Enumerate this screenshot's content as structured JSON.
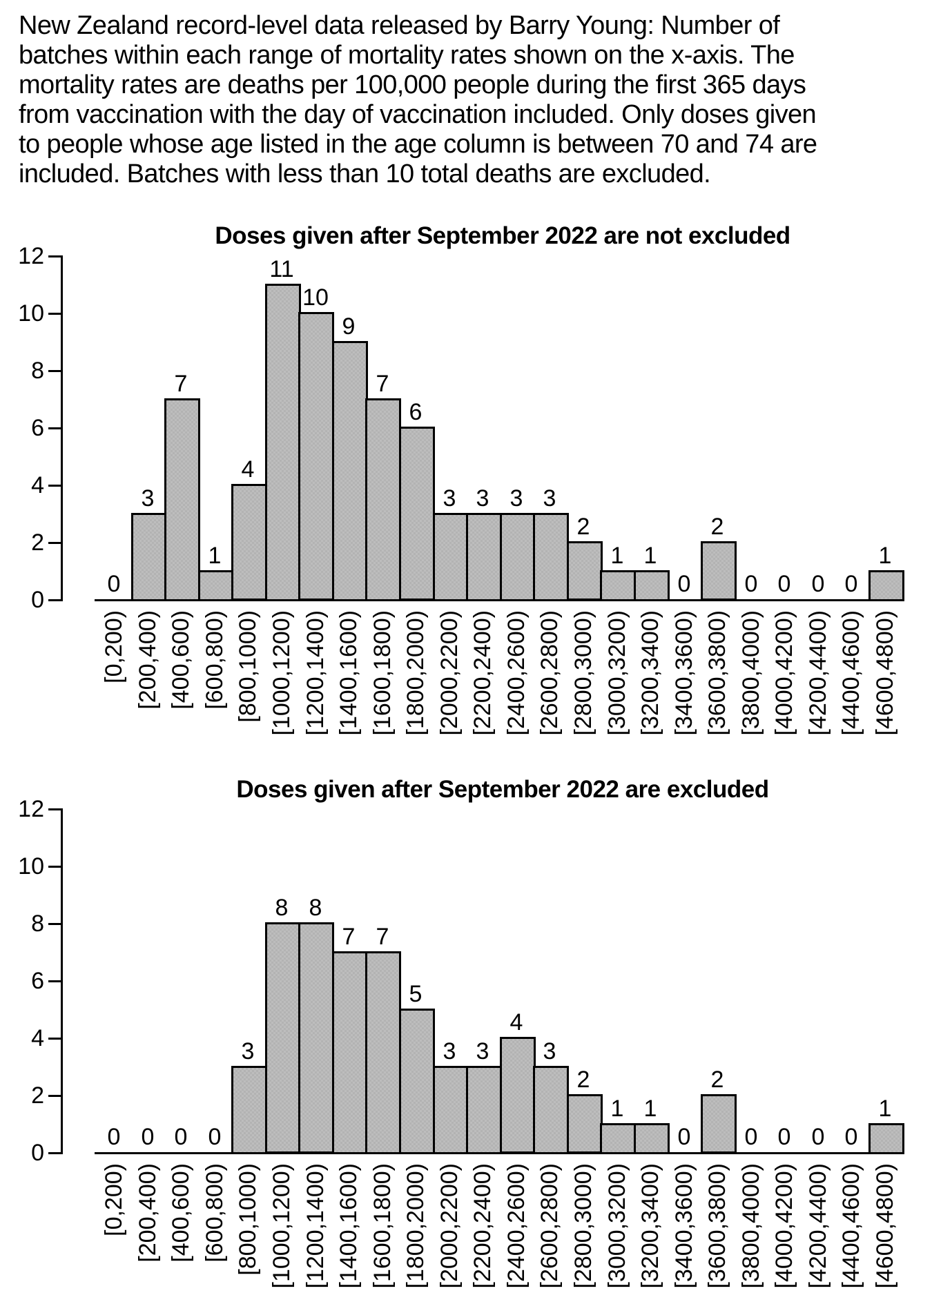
{
  "header": {
    "lines": [
      "New Zealand record-level data released by Barry Young: Number of",
      "batches within each range of mortality rates shown on the x-axis. The",
      "mortality rates are deaths per 100,000 people during the first 365 days",
      "from vaccination with the day of vaccination included. Only doses given",
      "to people whose age listed in the age column is between 70 and 74 are",
      "included. Batches with less than 10 total deaths are excluded."
    ]
  },
  "colors": {
    "background": "#ffffff",
    "bar_fill": "#b9b9b9",
    "bar_border": "#000000",
    "axis": "#000000",
    "text": "#000000"
  },
  "chart_data": [
    {
      "type": "bar",
      "title": "Doses given after September 2022 are not excluded",
      "categories": [
        "[0,200)",
        "[200,400)",
        "[400,600)",
        "[600,800)",
        "[800,1000)",
        "[1000,1200)",
        "[1200,1400)",
        "[1400,1600)",
        "[1600,1800)",
        "[1800,2000)",
        "[2000,2200)",
        "[2200,2400)",
        "[2400,2600)",
        "[2600,2800)",
        "[2800,3000)",
        "[3000,3200)",
        "[3200,3400)",
        "[3400,3600)",
        "[3600,3800)",
        "[3800,4000)",
        "[4000,4200)",
        "[4200,4400)",
        "[4400,4600)",
        "[4600,4800)"
      ],
      "values": [
        0,
        3,
        7,
        1,
        4,
        11,
        10,
        9,
        7,
        6,
        3,
        3,
        3,
        3,
        2,
        1,
        1,
        0,
        2,
        0,
        0,
        0,
        0,
        1
      ],
      "xlabel": "",
      "ylabel": "",
      "ylim": [
        0,
        12
      ],
      "y_ticks": [
        0,
        2,
        4,
        6,
        8,
        10,
        12
      ],
      "bar_value_labels": true,
      "grid": false,
      "legend": false
    },
    {
      "type": "bar",
      "title": "Doses given after September 2022 are excluded",
      "categories": [
        "[0,200)",
        "[200,400)",
        "[400,600)",
        "[600,800)",
        "[800,1000)",
        "[1000,1200)",
        "[1200,1400)",
        "[1400,1600)",
        "[1600,1800)",
        "[1800,2000)",
        "[2000,2200)",
        "[2200,2400)",
        "[2400,2600)",
        "[2600,2800)",
        "[2800,3000)",
        "[3000,3200)",
        "[3200,3400)",
        "[3400,3600)",
        "[3600,3800)",
        "[3800,4000)",
        "[4000,4200)",
        "[4200,4400)",
        "[4400,4600)",
        "[4600,4800)"
      ],
      "values": [
        0,
        0,
        0,
        0,
        3,
        8,
        8,
        7,
        7,
        5,
        3,
        3,
        4,
        3,
        2,
        1,
        1,
        0,
        2,
        0,
        0,
        0,
        0,
        1
      ],
      "xlabel": "",
      "ylabel": "",
      "ylim": [
        0,
        12
      ],
      "y_ticks": [
        0,
        2,
        4,
        6,
        8,
        10,
        12
      ],
      "bar_value_labels": true,
      "grid": false,
      "legend": false
    }
  ]
}
